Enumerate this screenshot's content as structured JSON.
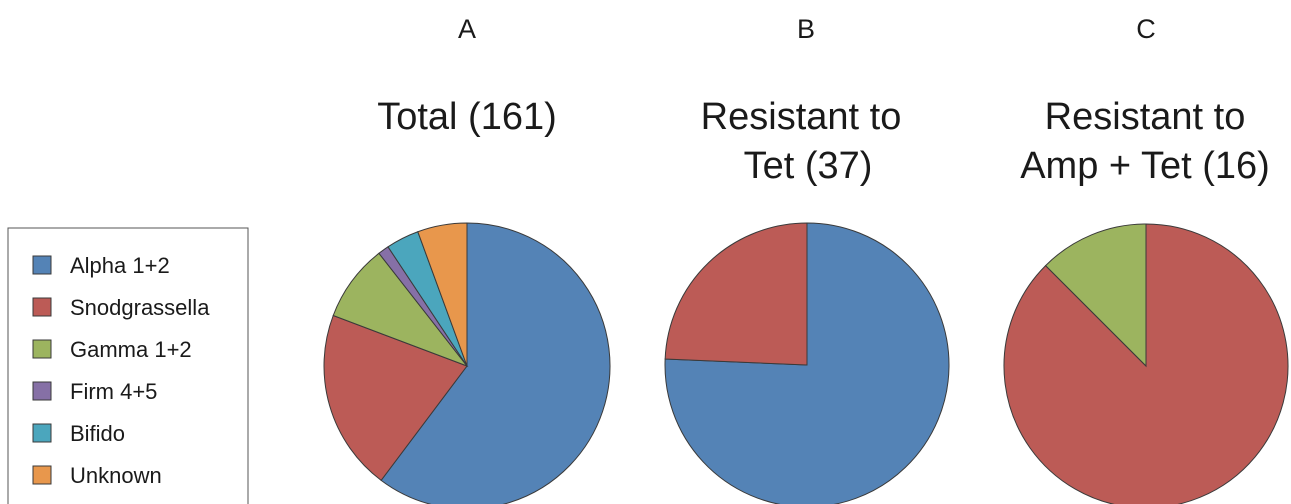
{
  "chart_data": {
    "type": "pie",
    "legend": {
      "placement": "left",
      "entries": [
        {
          "label": "Alpha 1+2",
          "color": "#5483b6"
        },
        {
          "label": "Snodgrassella",
          "color": "#bc5b56"
        },
        {
          "label": "Gamma 1+2",
          "color": "#9cb45f"
        },
        {
          "label": "Firm 4+5",
          "color": "#8670a6"
        },
        {
          "label": "Bifido",
          "color": "#4ba6bd"
        },
        {
          "label": "Unknown",
          "color": "#e8974c"
        }
      ]
    },
    "panels": [
      {
        "letter": "A",
        "title_lines": [
          "Total (161)"
        ],
        "slices": [
          {
            "category": "Alpha 1+2",
            "value": 97
          },
          {
            "category": "Snodgrassella",
            "value": 33
          },
          {
            "category": "Gamma 1+2",
            "value": 14
          },
          {
            "category": "Firm 4+5",
            "value": 2
          },
          {
            "category": "Bifido",
            "value": 6
          },
          {
            "category": "Unknown",
            "value": 9
          }
        ]
      },
      {
        "letter": "B",
        "title_lines": [
          "Resistant to",
          "Tet (37)"
        ],
        "slices": [
          {
            "category": "Alpha 1+2",
            "value": 28
          },
          {
            "category": "Snodgrassella",
            "value": 9
          }
        ]
      },
      {
        "letter": "C",
        "title_lines": [
          "Resistant to",
          "Amp + Tet (16)"
        ],
        "slices": [
          {
            "category": "Snodgrassella",
            "value": 14
          },
          {
            "category": "Gamma 1+2",
            "value": 2
          }
        ]
      }
    ]
  }
}
